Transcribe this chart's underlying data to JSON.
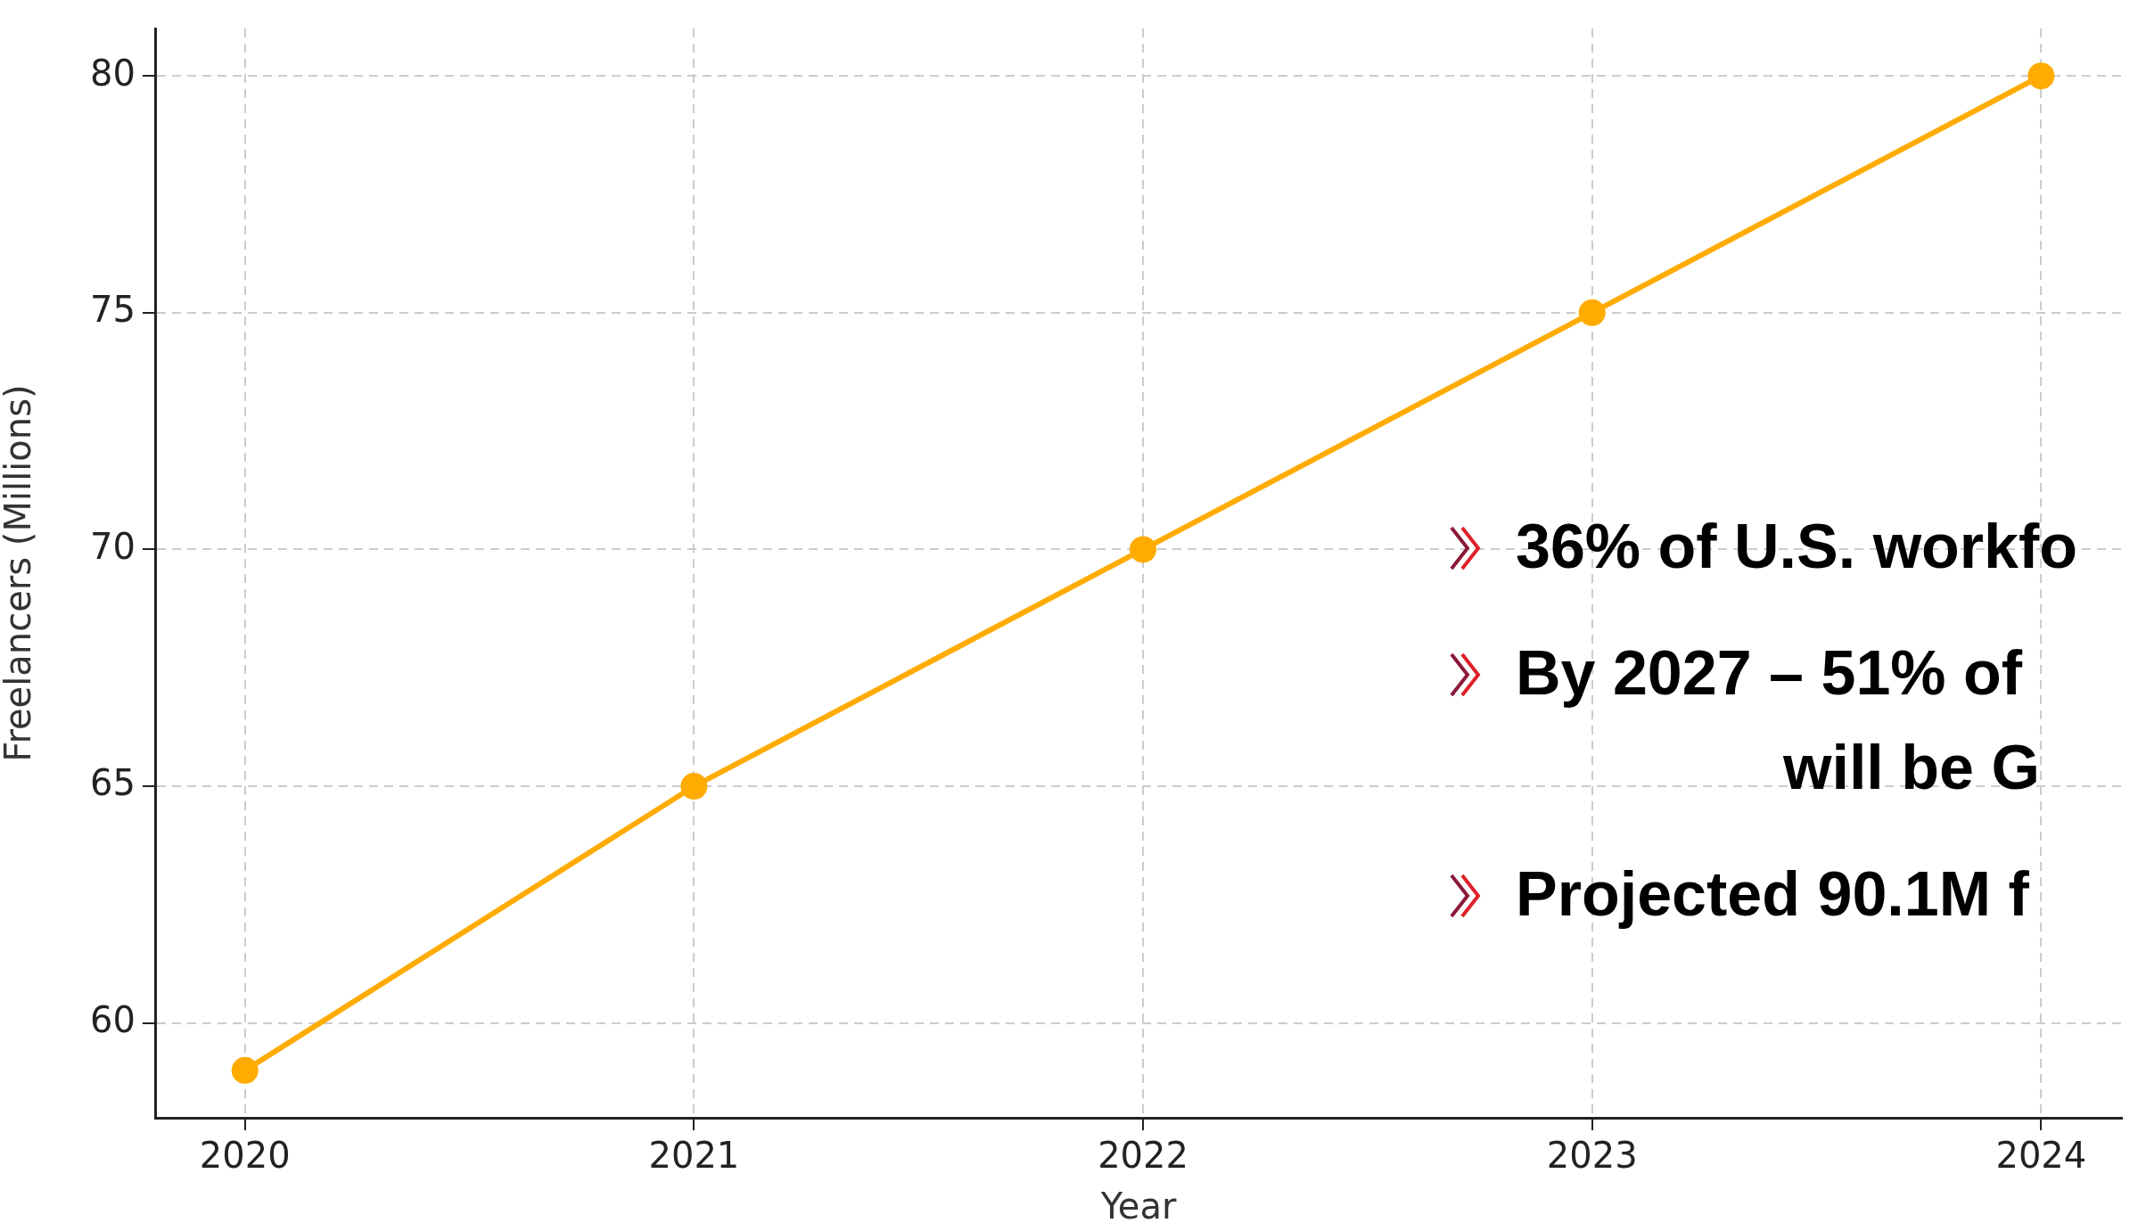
{
  "chart_data": {
    "type": "line",
    "x": [
      2020,
      2021,
      2022,
      2023,
      2024
    ],
    "series": [
      {
        "color": "#ffab00",
        "values": [
          59,
          65,
          70,
          75,
          80
        ]
      }
    ],
    "xlim": [
      2019.8,
      2024.18
    ],
    "xticks": [
      2020,
      2021,
      2022,
      2023,
      2024
    ],
    "ylim": [
      58,
      81
    ],
    "yticks": [
      60,
      65,
      70,
      75,
      80
    ],
    "xlabel": "Year",
    "ylabel": "Freelancers (Millions)",
    "grid": true,
    "legend": false,
    "marker": "circle",
    "line_style": "solid",
    "annotations": [
      "36% of U.S. workfo",
      "By 2027 – 51% of\nwill be G",
      "Projected 90.1M f"
    ]
  }
}
